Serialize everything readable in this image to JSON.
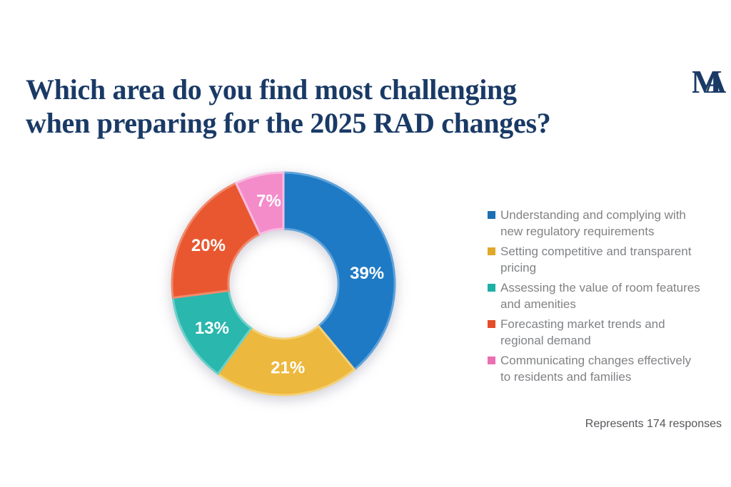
{
  "header": {
    "title_lines": [
      "Which area do you find most challenging",
      "when preparing for the 2025 RAD changes?"
    ]
  },
  "logo": {
    "letter_m": "M",
    "letter_a": "A"
  },
  "colors": {
    "background": "#ffffff",
    "title": "#1a3a66",
    "legend_text": "#808285",
    "footnote_text": "#55565b",
    "logo": "#1a3a66"
  },
  "chart_data": {
    "type": "pie",
    "subtype": "donut",
    "title": "Which area do you find most challenging when preparing for the 2025 RAD changes?",
    "categories": [
      "Understanding and complying with new regulatory requirements",
      "Setting competitive and transparent pricing",
      "Assessing the value of room features and amenities",
      "Forecasting market trends and regional demand",
      "Communicating changes effectively to residents and families"
    ],
    "values": [
      39,
      21,
      13,
      20,
      7
    ],
    "labels": [
      "39%",
      "21%",
      "13%",
      "20%",
      "7%"
    ],
    "unit": "%",
    "colors": [
      "#1f7ac5",
      "#ecb83d",
      "#2ab7ad",
      "#e95730",
      "#f48cca"
    ],
    "stroke_colors": [
      "#5fa3da",
      "#f4d076",
      "#6bd0c9",
      "#f08a6b",
      "#f9bce0"
    ],
    "legend_marker_colors": [
      "#1b6fb5",
      "#dfa92a",
      "#1db0a4",
      "#e34e29",
      "#ec6fb4"
    ],
    "start_angle_deg": 0,
    "direction": "clockwise",
    "inner_radius_ratio": 0.494,
    "label_radius_px": 118,
    "label_angles_deg": [
      83,
      177,
      238,
      297,
      350
    ],
    "legend_position": "right",
    "note": "Represents 174 responses"
  },
  "legend": {
    "items": [
      {
        "lines": [
          "Understanding and complying with",
          "new regulatory requirements"
        ]
      },
      {
        "lines": [
          "Setting competitive and transparent",
          "pricing"
        ]
      },
      {
        "lines": [
          "Assessing the value of room features",
          "and amenities"
        ]
      },
      {
        "lines": [
          "Forecasting market trends and",
          "regional demand"
        ]
      },
      {
        "lines": [
          "Communicating changes effectively",
          "to residents and families"
        ]
      }
    ]
  }
}
